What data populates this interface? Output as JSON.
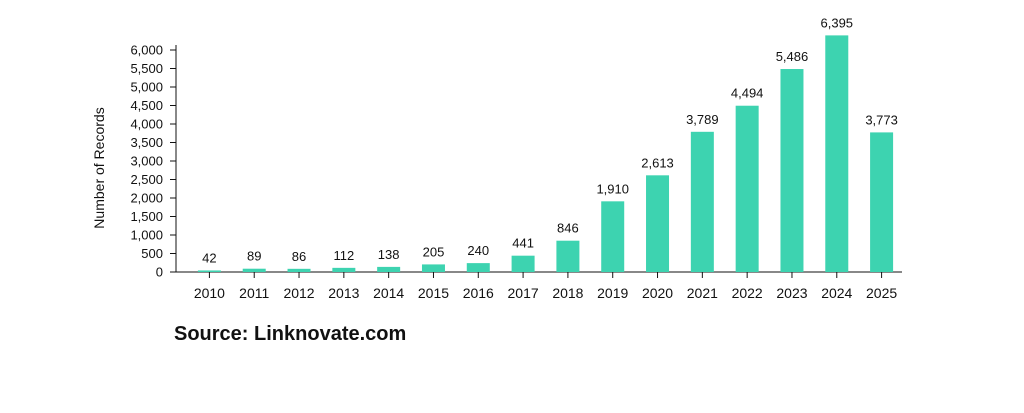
{
  "chart_data": {
    "type": "bar",
    "categories": [
      "2010",
      "2011",
      "2012",
      "2013",
      "2014",
      "2015",
      "2016",
      "2017",
      "2018",
      "2019",
      "2020",
      "2021",
      "2022",
      "2023",
      "2024",
      "2025"
    ],
    "values": [
      42,
      89,
      86,
      112,
      138,
      205,
      240,
      441,
      846,
      1910,
      2613,
      3789,
      4494,
      5486,
      6395,
      3773
    ],
    "data_labels": [
      "42",
      "89",
      "86",
      "112",
      "138",
      "205",
      "240",
      "441",
      "846",
      "1,910",
      "2,613",
      "3,789",
      "4,494",
      "5,486",
      "6,395",
      "3,773"
    ],
    "title": "",
    "xlabel": "",
    "ylabel": "Number of Records",
    "ylim": [
      0,
      6000
    ],
    "yticks": [
      0,
      500,
      1000,
      1500,
      2000,
      2500,
      3000,
      3500,
      4000,
      4500,
      5000,
      5500,
      6000
    ],
    "ytick_labels": [
      "0",
      "500",
      "1,000",
      "1,500",
      "2,000",
      "2,500",
      "3,000",
      "3,500",
      "4,000",
      "4,500",
      "5,000",
      "5,500",
      "6,000"
    ],
    "bar_color": "#3dd3b0",
    "grid": false,
    "legend": "none"
  },
  "source_text": "Source: Linknovate.com"
}
